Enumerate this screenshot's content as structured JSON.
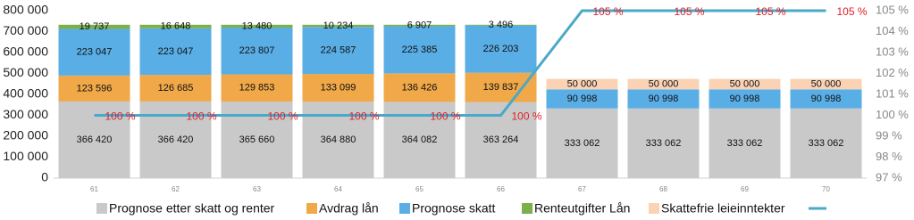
{
  "chart_data": {
    "type": "bar",
    "stacked": true,
    "categories": [
      "61",
      "62",
      "63",
      "64",
      "65",
      "66",
      "67",
      "68",
      "69",
      "70"
    ],
    "series": [
      {
        "name": "Prognose etter skatt og renter",
        "color": "#c9c9c9",
        "values": [
          366420,
          366420,
          365660,
          364880,
          364082,
          363264,
          333062,
          333062,
          333062,
          333062
        ],
        "value_labels": [
          "366 420",
          "366 420",
          "365 660",
          "364 880",
          "364 082",
          "363 264",
          "333 062",
          "333 062",
          "333 062",
          "333 062"
        ]
      },
      {
        "name": "Avdrag lån",
        "color": "#f0a848",
        "values": [
          123596,
          126685,
          129853,
          133099,
          136426,
          139837,
          null,
          null,
          null,
          null
        ],
        "value_labels": [
          "123 596",
          "126 685",
          "129 853",
          "133 099",
          "136 426",
          "139 837",
          null,
          null,
          null,
          null
        ]
      },
      {
        "name": "Prognose skatt",
        "color": "#5aaee6",
        "values": [
          223047,
          223047,
          223807,
          224587,
          225385,
          226203,
          90998,
          90998,
          90998,
          90998
        ],
        "value_labels": [
          "223 047",
          "223 047",
          "223 807",
          "224 587",
          "225 385",
          "226 203",
          "90 998",
          "90 998",
          "90 998",
          "90 998"
        ]
      },
      {
        "name": "Renteutgifter Lån",
        "color": "#7cb04a",
        "values": [
          19737,
          16648,
          13480,
          10234,
          6907,
          3496,
          null,
          null,
          null,
          null
        ],
        "value_labels": [
          "19 737",
          "16 648",
          "13 480",
          "10 234",
          "6 907",
          "3 496",
          null,
          null,
          null,
          null
        ]
      },
      {
        "name": "Skattefrie leieinntekter",
        "color": "#fbd3b4",
        "values": [
          null,
          null,
          null,
          null,
          null,
          null,
          50000,
          50000,
          50000,
          50000
        ],
        "value_labels": [
          null,
          null,
          null,
          null,
          null,
          null,
          "50 000",
          "50 000",
          "50 000",
          "50 000"
        ]
      },
      {
        "type": "line",
        "axis": "y2",
        "color": "#4aa8c8",
        "values": [
          100,
          100,
          100,
          100,
          100,
          100,
          105,
          105,
          105,
          105
        ],
        "value_labels": [
          "100 %",
          "100 %",
          "100 %",
          "100 %",
          "100 %",
          "100 %",
          "105 %",
          "105 %",
          "105 %",
          "105 %"
        ]
      }
    ],
    "ylim": [
      0,
      800000
    ],
    "yticks": [
      0,
      {
        "value": 100000,
        "label": "100 000"
      },
      {
        "value": 200000,
        "label": "200 000"
      },
      {
        "value": 300000,
        "label": "300 000"
      },
      {
        "value": 400000,
        "label": "400 000"
      },
      {
        "value": 500000,
        "label": "500 000"
      },
      {
        "value": 600000,
        "label": "600 000"
      },
      {
        "value": 700000,
        "label": "700 000"
      },
      {
        "value": 800000,
        "label": "800 000"
      }
    ],
    "y2lim": [
      97,
      105
    ],
    "y2ticks": [
      {
        "value": 97,
        "label": "97 %"
      },
      {
        "value": 98,
        "label": "98 %"
      },
      {
        "value": 99,
        "label": "99 %"
      },
      {
        "value": 100,
        "label": "100 %"
      },
      {
        "value": 101,
        "label": "101 %"
      },
      {
        "value": 102,
        "label": "102 %"
      },
      {
        "value": 103,
        "label": "103 %"
      },
      {
        "value": 104,
        "label": "104 %"
      },
      {
        "value": 105,
        "label": "105 %"
      }
    ],
    "grid": false
  }
}
